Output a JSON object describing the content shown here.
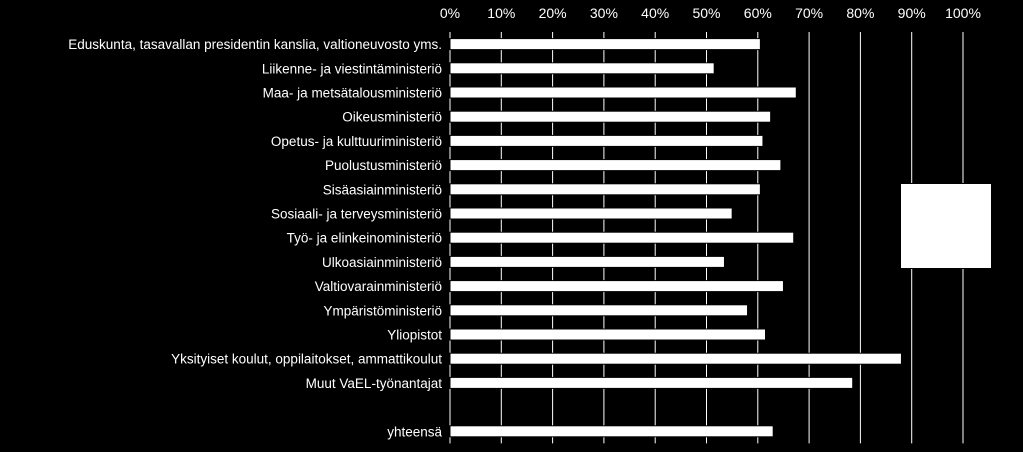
{
  "chart_data": {
    "type": "bar",
    "orientation": "horizontal",
    "categories": [
      "Eduskunta, tasavallan presidentin kanslia, valtioneuvosto yms.",
      "Liikenne- ja viestintäministeriö",
      "Maa- ja metsätalousministeriö",
      "Oikeusministeriö",
      "Opetus- ja kulttuuriministeriö",
      "Puolustusministeriö",
      "Sisäasiainministeriö",
      "Sosiaali- ja terveysministeriö",
      "Työ- ja elinkeinoministeriö",
      "Ulkoasiainministeriö",
      "Valtiovarainministeriö",
      "Ympäristöministeriö",
      "Yliopistot",
      "Yksityiset koulut, oppilaitokset, ammattikoulut",
      "Muut VaEL-työnantajat",
      "",
      "yhteensä"
    ],
    "values": [
      60.5,
      51.5,
      67.5,
      62.5,
      61.0,
      64.5,
      60.5,
      55.0,
      67.0,
      53.5,
      65.0,
      58.0,
      61.5,
      88.0,
      78.5,
      null,
      63.0
    ],
    "xlim": [
      0,
      100
    ],
    "xticks": [
      "0%",
      "10%",
      "20%",
      "30%",
      "40%",
      "50%",
      "60%",
      "70%",
      "80%",
      "90%",
      "100%"
    ],
    "x_tick_values": [
      0,
      10,
      20,
      30,
      40,
      50,
      60,
      70,
      80,
      90,
      100
    ],
    "axis_position": "top",
    "grid": true,
    "legend": "right",
    "colors": {
      "background": "#000000",
      "bar": "#ffffff",
      "text": "#ffffff",
      "grid": "#ffffff"
    }
  }
}
